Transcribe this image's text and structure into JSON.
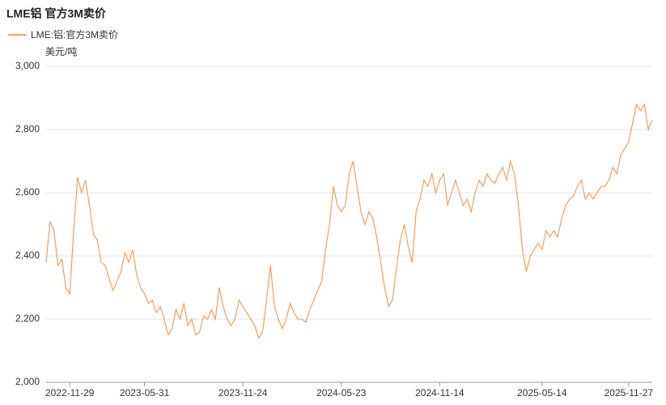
{
  "chart_data": {
    "type": "line",
    "title": "LME铝 官方3M卖价",
    "y_label": "美元/吨",
    "categories": [
      null,
      null,
      null,
      null,
      null,
      null,
      "2022-11-29",
      null,
      null,
      null,
      null,
      null,
      null,
      null,
      null,
      null,
      null,
      null,
      null,
      null,
      null,
      null,
      null,
      null,
      null,
      "2023-05-31",
      null,
      null,
      null,
      null,
      null,
      null,
      null,
      null,
      null,
      null,
      null,
      null,
      null,
      null,
      null,
      null,
      null,
      null,
      null,
      null,
      null,
      null,
      null,
      null,
      "2023-11-24",
      null,
      null,
      null,
      null,
      null,
      null,
      null,
      null,
      null,
      null,
      null,
      null,
      null,
      null,
      null,
      null,
      null,
      null,
      null,
      null,
      null,
      null,
      null,
      null,
      "2024-05-23",
      null,
      null,
      null,
      null,
      null,
      null,
      null,
      null,
      null,
      null,
      null,
      null,
      null,
      null,
      null,
      null,
      null,
      null,
      null,
      null,
      null,
      null,
      null,
      null,
      "2024-11-14",
      null,
      null,
      null,
      null,
      null,
      null,
      null,
      null,
      null,
      null,
      null,
      null,
      null,
      null,
      null,
      null,
      null,
      null,
      null,
      null,
      null,
      null,
      null,
      null,
      null,
      "2025-05-14",
      null,
      null,
      null,
      null,
      null,
      null,
      null,
      null,
      null,
      null,
      null,
      null,
      null,
      null,
      null,
      null,
      null,
      null,
      null,
      null,
      null,
      "2025-11-27",
      null,
      null,
      null,
      null,
      null,
      null
    ],
    "series": [
      {
        "name": "LME:铝:官方3M卖价",
        "color": "#f2a05a",
        "values": [
          2380,
          2510,
          2480,
          2370,
          2390,
          2300,
          2280,
          2480,
          2650,
          2600,
          2640,
          2560,
          2470,
          2450,
          2380,
          2370,
          2330,
          2290,
          2320,
          2350,
          2410,
          2380,
          2420,
          2340,
          2300,
          2280,
          2250,
          2260,
          2220,
          2240,
          2200,
          2150,
          2170,
          2230,
          2200,
          2250,
          2180,
          2200,
          2150,
          2160,
          2210,
          2200,
          2230,
          2200,
          2300,
          2240,
          2200,
          2180,
          2200,
          2260,
          2240,
          2220,
          2200,
          2180,
          2140,
          2160,
          2260,
          2370,
          2240,
          2200,
          2170,
          2200,
          2250,
          2220,
          2200,
          2200,
          2190,
          2230,
          2260,
          2290,
          2320,
          2420,
          2500,
          2620,
          2560,
          2540,
          2560,
          2660,
          2700,
          2620,
          2540,
          2500,
          2540,
          2520,
          2460,
          2380,
          2300,
          2240,
          2260,
          2360,
          2450,
          2500,
          2430,
          2380,
          2540,
          2580,
          2640,
          2620,
          2660,
          2600,
          2640,
          2660,
          2560,
          2600,
          2640,
          2600,
          2560,
          2580,
          2540,
          2600,
          2640,
          2620,
          2660,
          2640,
          2630,
          2660,
          2680,
          2640,
          2700,
          2660,
          2560,
          2420,
          2350,
          2400,
          2420,
          2440,
          2420,
          2480,
          2460,
          2480,
          2460,
          2520,
          2560,
          2580,
          2590,
          2620,
          2640,
          2580,
          2600,
          2580,
          2600,
          2620,
          2620,
          2640,
          2680,
          2660,
          2720,
          2740,
          2760,
          2820,
          2880,
          2860,
          2880,
          2800,
          2830
        ]
      }
    ],
    "ylim": [
      2000,
      3000
    ],
    "yticks": [
      {
        "value": 2000,
        "label": "2,000"
      },
      {
        "value": 2200,
        "label": "2,200"
      },
      {
        "value": 2400,
        "label": "2,400"
      },
      {
        "value": 2600,
        "label": "2,600"
      },
      {
        "value": 2800,
        "label": "2,800"
      },
      {
        "value": 3000,
        "label": "3,000"
      }
    ],
    "grid": true
  }
}
